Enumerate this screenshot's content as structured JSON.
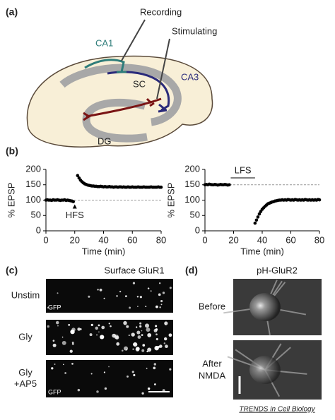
{
  "panel_a": {
    "label": "(a)",
    "recording": "Recording",
    "stimulating": "Stimulating",
    "ca1": "CA1",
    "ca3": "CA3",
    "sc": "SC",
    "dg": "DG"
  },
  "panel_b": {
    "label": "(b)"
  },
  "chart_data": [
    {
      "type": "scatter",
      "ylabel": "% EPSP",
      "xlabel": "Time (min)",
      "color": "#000000",
      "x": [
        0,
        1,
        2,
        3,
        4,
        5,
        6,
        7,
        8,
        9,
        10,
        11,
        12,
        13,
        14,
        15,
        16,
        17,
        18,
        19,
        22,
        23,
        24,
        25,
        26,
        27,
        28,
        29,
        30,
        31,
        32,
        33,
        34,
        35,
        36,
        37,
        38,
        39,
        40,
        41,
        42,
        43,
        44,
        45,
        46,
        47,
        48,
        49,
        50,
        51,
        52,
        53,
        54,
        55,
        56,
        57,
        58,
        59,
        60,
        61,
        62,
        63,
        64,
        65,
        66,
        67,
        68,
        69,
        70,
        71,
        72,
        73,
        74,
        75,
        76,
        77,
        78,
        79,
        80
      ],
      "values": [
        100,
        101,
        100,
        100,
        99,
        101,
        100,
        100,
        101,
        100,
        99,
        100,
        100,
        101,
        99,
        100,
        99,
        98,
        97,
        95,
        180,
        172,
        165,
        160,
        156,
        153,
        151,
        149,
        148,
        147,
        146,
        146,
        145,
        145,
        144,
        144,
        145,
        144,
        143,
        144,
        143,
        143,
        144,
        143,
        143,
        142,
        143,
        143,
        142,
        143,
        143,
        142,
        143,
        142,
        142,
        143,
        142,
        142,
        143,
        142,
        142,
        142,
        143,
        142,
        142,
        142,
        143,
        142,
        142,
        142,
        142,
        143,
        142,
        142,
        142,
        142,
        143,
        142,
        142
      ],
      "xlim": [
        0,
        80
      ],
      "ylim": [
        0,
        200
      ],
      "xticks": [
        0,
        20,
        40,
        60,
        80
      ],
      "yticks": [
        0,
        50,
        100,
        150,
        200
      ],
      "reference_line": 100,
      "annotation": {
        "text": "HFS",
        "x": 20
      }
    },
    {
      "type": "scatter",
      "ylabel": "% EPSP",
      "xlabel": "Time (min)",
      "color": "#000000",
      "x": [
        0,
        1,
        2,
        3,
        4,
        5,
        6,
        7,
        8,
        9,
        10,
        11,
        12,
        13,
        14,
        15,
        16,
        17,
        35,
        36,
        37,
        38,
        39,
        40,
        41,
        42,
        43,
        44,
        45,
        46,
        47,
        48,
        49,
        50,
        51,
        52,
        53,
        54,
        55,
        56,
        57,
        58,
        59,
        60,
        61,
        62,
        63,
        64,
        65,
        66,
        67,
        68,
        69,
        70,
        71,
        72,
        73,
        74,
        75,
        76,
        77,
        78,
        79,
        80
      ],
      "values": [
        150,
        151,
        150,
        152,
        151,
        150,
        150,
        151,
        150,
        149,
        150,
        151,
        150,
        150,
        151,
        150,
        149,
        150,
        25,
        35,
        45,
        55,
        63,
        70,
        75,
        80,
        84,
        88,
        90,
        92,
        94,
        95,
        97,
        98,
        99,
        100,
        100,
        101,
        100,
        101,
        100,
        102,
        101,
        100,
        101,
        100,
        102,
        101,
        100,
        101,
        100,
        101,
        100,
        102,
        101,
        100,
        101,
        100,
        101,
        100,
        101,
        100,
        102,
        101
      ],
      "xlim": [
        0,
        80
      ],
      "ylim": [
        0,
        200
      ],
      "xticks": [
        0,
        20,
        40,
        60,
        80
      ],
      "yticks": [
        0,
        50,
        100,
        150,
        200
      ],
      "reference_line": 150,
      "annotation": {
        "text": "LFS",
        "x_start": 18,
        "x_end": 35
      }
    }
  ],
  "panel_c": {
    "label": "(c)",
    "title": "Surface GluR1",
    "row_labels": [
      [
        "Unstim"
      ],
      [
        "Gly"
      ],
      [
        "Gly",
        "+AP5"
      ]
    ],
    "channel_label": "GFP"
  },
  "panel_d": {
    "label": "(d)",
    "title": "pH-GluR2",
    "row_labels": [
      [
        "Before"
      ],
      [
        "After",
        "NMDA"
      ]
    ]
  },
  "footer": "TRENDS in Cell Biology"
}
